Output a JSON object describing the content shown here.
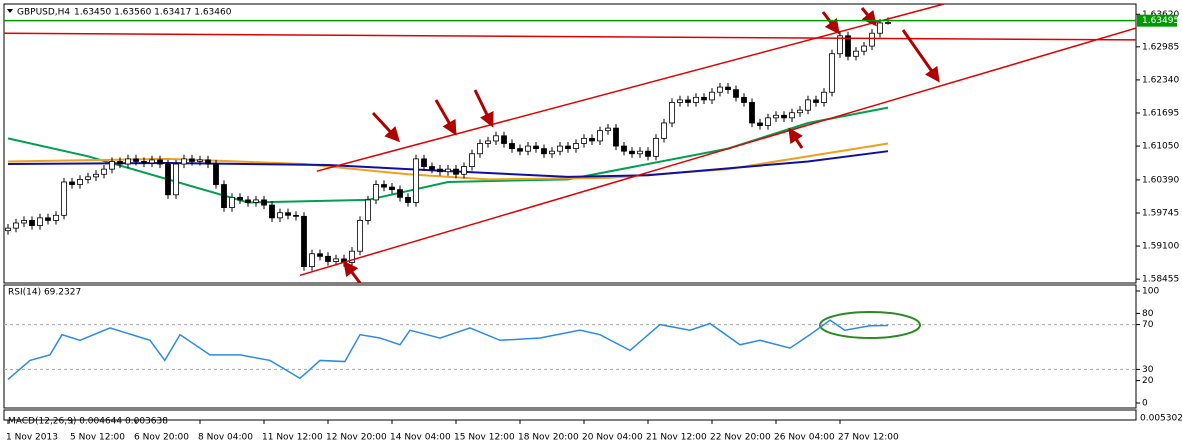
{
  "chart_data": [
    {
      "type": "candlestick",
      "title": "GBPUSD,H4",
      "header_values": "1.63450 1.63560 1.63417 1.63460",
      "xlim": [
        -0.5,
        141
      ],
      "ylim": [
        1.5838,
        1.6382
      ],
      "xticks": [
        {
          "value": 0,
          "label": "1 Nov 2013"
        },
        {
          "value": 8,
          "label": "5 Nov 12:00"
        },
        {
          "value": 16,
          "label": "6 Nov 20:00"
        },
        {
          "value": 24,
          "label": "8 Nov 04:00"
        },
        {
          "value": 32,
          "label": "11 Nov 12:00"
        },
        {
          "value": 40,
          "label": "12 Nov 20:00"
        },
        {
          "value": 48,
          "label": "14 Nov 04:00"
        },
        {
          "value": 56,
          "label": "15 Nov 12:00"
        },
        {
          "value": 64,
          "label": "18 Nov 20:00"
        },
        {
          "value": 72,
          "label": "20 Nov 04:00"
        },
        {
          "value": 80,
          "label": "21 Nov 12:00"
        },
        {
          "value": 88,
          "label": "22 Nov 20:00"
        },
        {
          "value": 96,
          "label": "26 Nov 04:00"
        },
        {
          "value": 104,
          "label": "27 Nov 12:00"
        }
      ],
      "yticks": [
        {
          "value": 1.6362,
          "label": "1.63620"
        },
        1.62985,
        {
          "value": 1.6234,
          "label": "1.62340"
        },
        1.61695,
        {
          "value": 1.6105,
          "label": "1.61050"
        },
        {
          "value": 1.6039,
          "label": "1.60390"
        },
        1.59745,
        {
          "value": 1.591,
          "label": "1.59100"
        },
        1.58455
      ],
      "level": 1.63495,
      "level_color": "#009900",
      "open": [
        1.594,
        1.5945,
        1.5955,
        1.596,
        1.595,
        1.5965,
        1.596,
        1.597,
        1.6035,
        1.603,
        1.604,
        1.6045,
        1.605,
        1.606,
        1.6075,
        1.607,
        1.608,
        1.6075,
        1.6072,
        1.6078,
        1.607,
        1.601,
        1.607,
        1.608,
        1.6075,
        1.6078,
        1.607,
        1.603,
        1.5985,
        1.6005,
        1.6,
        1.5995,
        1.6,
        1.599,
        1.5965,
        1.5975,
        1.597,
        1.5968,
        1.587,
        1.5895,
        1.589,
        1.588,
        1.5885,
        1.5878,
        1.59,
        1.596,
        1.6,
        1.603,
        1.6025,
        1.602,
        1.6005,
        1.5995,
        1.608,
        1.6065,
        1.606,
        1.6055,
        1.606,
        1.605,
        1.6065,
        1.609,
        1.611,
        1.6115,
        1.6125,
        1.611,
        1.61,
        1.6095,
        1.6105,
        1.61,
        1.609,
        1.6095,
        1.6105,
        1.61,
        1.611,
        1.612,
        1.6115,
        1.6135,
        1.614,
        1.6105,
        1.6095,
        1.609,
        1.6095,
        1.6085,
        1.612,
        1.615,
        1.619,
        1.6195,
        1.619,
        1.62,
        1.6195,
        1.621,
        1.622,
        1.6215,
        1.62,
        1.619,
        1.615,
        1.6145,
        1.616,
        1.6165,
        1.616,
        1.617,
        1.6175,
        1.6195,
        1.619,
        1.621,
        1.6285,
        1.632,
        1.628,
        1.629,
        1.63,
        1.6325,
        1.6345
      ],
      "high": [
        1.5953,
        1.5963,
        1.5968,
        1.5968,
        1.5973,
        1.5973,
        1.5978,
        1.6043,
        1.6043,
        1.6048,
        1.6053,
        1.6058,
        1.6068,
        1.6083,
        1.6083,
        1.6088,
        1.6088,
        1.6083,
        1.6086,
        1.6086,
        1.6078,
        1.6078,
        1.6088,
        1.6088,
        1.6086,
        1.6086,
        1.6078,
        1.6038,
        1.6013,
        1.6013,
        1.6008,
        1.6008,
        1.6008,
        1.5998,
        1.5983,
        1.5983,
        1.5978,
        1.5976,
        1.5903,
        1.5903,
        1.5898,
        1.5893,
        1.5893,
        1.5908,
        1.5968,
        1.6008,
        1.6038,
        1.6038,
        1.6033,
        1.6028,
        1.6013,
        1.6088,
        1.6088,
        1.6073,
        1.6068,
        1.6068,
        1.6068,
        1.6073,
        1.6098,
        1.6118,
        1.6123,
        1.6133,
        1.6133,
        1.6118,
        1.6108,
        1.6113,
        1.6113,
        1.6108,
        1.6103,
        1.6113,
        1.6113,
        1.6118,
        1.6128,
        1.6128,
        1.6143,
        1.6148,
        1.6148,
        1.6113,
        1.6103,
        1.6103,
        1.6103,
        1.6128,
        1.6158,
        1.6198,
        1.6203,
        1.6203,
        1.6208,
        1.6208,
        1.6218,
        1.6228,
        1.6228,
        1.6223,
        1.6208,
        1.6198,
        1.6158,
        1.6168,
        1.6173,
        1.6173,
        1.6178,
        1.6183,
        1.6203,
        1.6203,
        1.6218,
        1.6293,
        1.6328,
        1.6328,
        1.6298,
        1.6308,
        1.6333,
        1.6353,
        1.6356
      ],
      "low": [
        1.5932,
        1.5937,
        1.5947,
        1.5942,
        1.5942,
        1.5952,
        1.5952,
        1.5962,
        1.6022,
        1.6022,
        1.6032,
        1.6037,
        1.6042,
        1.6052,
        1.6062,
        1.6062,
        1.6067,
        1.6064,
        1.6064,
        1.6062,
        1.6002,
        1.6002,
        1.6062,
        1.6067,
        1.6067,
        1.6062,
        1.6022,
        1.5977,
        1.5977,
        1.5992,
        1.5987,
        1.5987,
        1.5982,
        1.5957,
        1.5957,
        1.5962,
        1.596,
        1.5862,
        1.5862,
        1.5882,
        1.5872,
        1.5872,
        1.587,
        1.587,
        1.5892,
        1.5952,
        1.5992,
        1.6017,
        1.6012,
        1.5997,
        1.5987,
        1.5987,
        1.6057,
        1.6052,
        1.6047,
        1.6047,
        1.6042,
        1.6042,
        1.6057,
        1.6082,
        1.6102,
        1.6107,
        1.6102,
        1.6092,
        1.6087,
        1.6087,
        1.6092,
        1.6082,
        1.6082,
        1.6087,
        1.6092,
        1.6092,
        1.6102,
        1.6107,
        1.6107,
        1.6127,
        1.6097,
        1.6087,
        1.6082,
        1.6082,
        1.6077,
        1.6077,
        1.6112,
        1.6142,
        1.6182,
        1.6182,
        1.6182,
        1.6187,
        1.6187,
        1.6202,
        1.6207,
        1.6192,
        1.6182,
        1.6142,
        1.6137,
        1.6137,
        1.6152,
        1.6152,
        1.6152,
        1.6162,
        1.6167,
        1.6182,
        1.6182,
        1.6202,
        1.6277,
        1.6272,
        1.6272,
        1.6282,
        1.6292,
        1.6317,
        1.63417
      ],
      "close": [
        1.5945,
        1.5955,
        1.596,
        1.595,
        1.5965,
        1.596,
        1.597,
        1.6035,
        1.603,
        1.604,
        1.6045,
        1.605,
        1.606,
        1.6075,
        1.607,
        1.608,
        1.6075,
        1.6072,
        1.6078,
        1.607,
        1.601,
        1.607,
        1.608,
        1.6075,
        1.6078,
        1.607,
        1.603,
        1.5985,
        1.6005,
        1.6,
        1.5995,
        1.6,
        1.599,
        1.5965,
        1.5975,
        1.597,
        1.5968,
        1.587,
        1.5895,
        1.589,
        1.588,
        1.5885,
        1.5878,
        1.59,
        1.596,
        1.6,
        1.603,
        1.6025,
        1.602,
        1.6005,
        1.5995,
        1.608,
        1.6065,
        1.606,
        1.6055,
        1.606,
        1.605,
        1.6065,
        1.609,
        1.611,
        1.6115,
        1.6125,
        1.611,
        1.61,
        1.6095,
        1.6105,
        1.61,
        1.609,
        1.6095,
        1.6105,
        1.61,
        1.611,
        1.612,
        1.6115,
        1.6135,
        1.614,
        1.6105,
        1.6095,
        1.609,
        1.6095,
        1.6085,
        1.612,
        1.615,
        1.619,
        1.6195,
        1.619,
        1.62,
        1.6195,
        1.621,
        1.622,
        1.6215,
        1.62,
        1.619,
        1.615,
        1.6145,
        1.616,
        1.6165,
        1.616,
        1.617,
        1.6175,
        1.6195,
        1.619,
        1.621,
        1.6285,
        1.632,
        1.628,
        1.629,
        1.63,
        1.6325,
        1.6345,
        1.6346
      ],
      "lines": [
        {
          "color": "#00a050",
          "x": [
            0,
            10,
            30,
            45,
            55,
            70,
            90,
            100,
            110
          ],
          "values": [
            1.612,
            1.6085,
            1.5995,
            1.6,
            1.6035,
            1.604,
            1.61,
            1.615,
            1.618
          ]
        },
        {
          "color": "#f0a020",
          "x": [
            0,
            20,
            37,
            50,
            60,
            75,
            90,
            110
          ],
          "values": [
            1.6075,
            1.608,
            1.607,
            1.605,
            1.604,
            1.6043,
            1.606,
            1.611
          ]
        },
        {
          "color": "#1010a0",
          "x": [
            0,
            20,
            40,
            50,
            70,
            80,
            100,
            110
          ],
          "values": [
            1.607,
            1.6072,
            1.6068,
            1.606,
            1.6045,
            1.6048,
            1.6075,
            1.6095
          ]
        }
      ],
      "trendlines": [
        {
          "color": "#e00000",
          "x": [
            38.6,
            117
          ],
          "values": [
            1.6056,
            1.6382
          ]
        },
        {
          "color": "#e00000",
          "x": [
            36.5,
            141
          ],
          "values": [
            1.5853,
            1.6335
          ]
        },
        {
          "color": "#e00000",
          "x": [
            -0.5,
            141
          ],
          "values": [
            1.6325,
            1.6312
          ]
        }
      ]
    },
    {
      "type": "line",
      "title": "RSI(14) 69.2327",
      "ylim": [
        0,
        100
      ],
      "yticks": [
        100,
        80,
        70,
        30,
        20,
        0
      ],
      "levels": [
        70,
        30
      ],
      "color": "#2a8be8",
      "x": [
        0,
        2.75,
        5.25,
        6.75,
        9,
        12.75,
        17.75,
        19.6,
        21.5,
        25.25,
        29,
        32.75,
        36.5,
        39,
        42.1,
        44,
        46.5,
        49,
        50.25,
        54,
        57.75,
        61.5,
        66.5,
        71.5,
        74,
        77.75,
        81.5,
        85.25,
        87.75,
        91.5,
        94,
        97.75,
        100.25,
        102.75,
        104.6,
        107.75,
        110
      ],
      "values": [
        21,
        38,
        43,
        61,
        56,
        67,
        56,
        38,
        61,
        43,
        43,
        38,
        22,
        38,
        37,
        61,
        58,
        52,
        65,
        58,
        67,
        56,
        58,
        65,
        61,
        47,
        70,
        65,
        71,
        52,
        56,
        49,
        61,
        74,
        65,
        69,
        69.2327
      ]
    },
    {
      "type": "line",
      "title": "MACD(12,26,9) 0.004644 0.003638",
      "axis_label": "0.005302"
    }
  ]
}
